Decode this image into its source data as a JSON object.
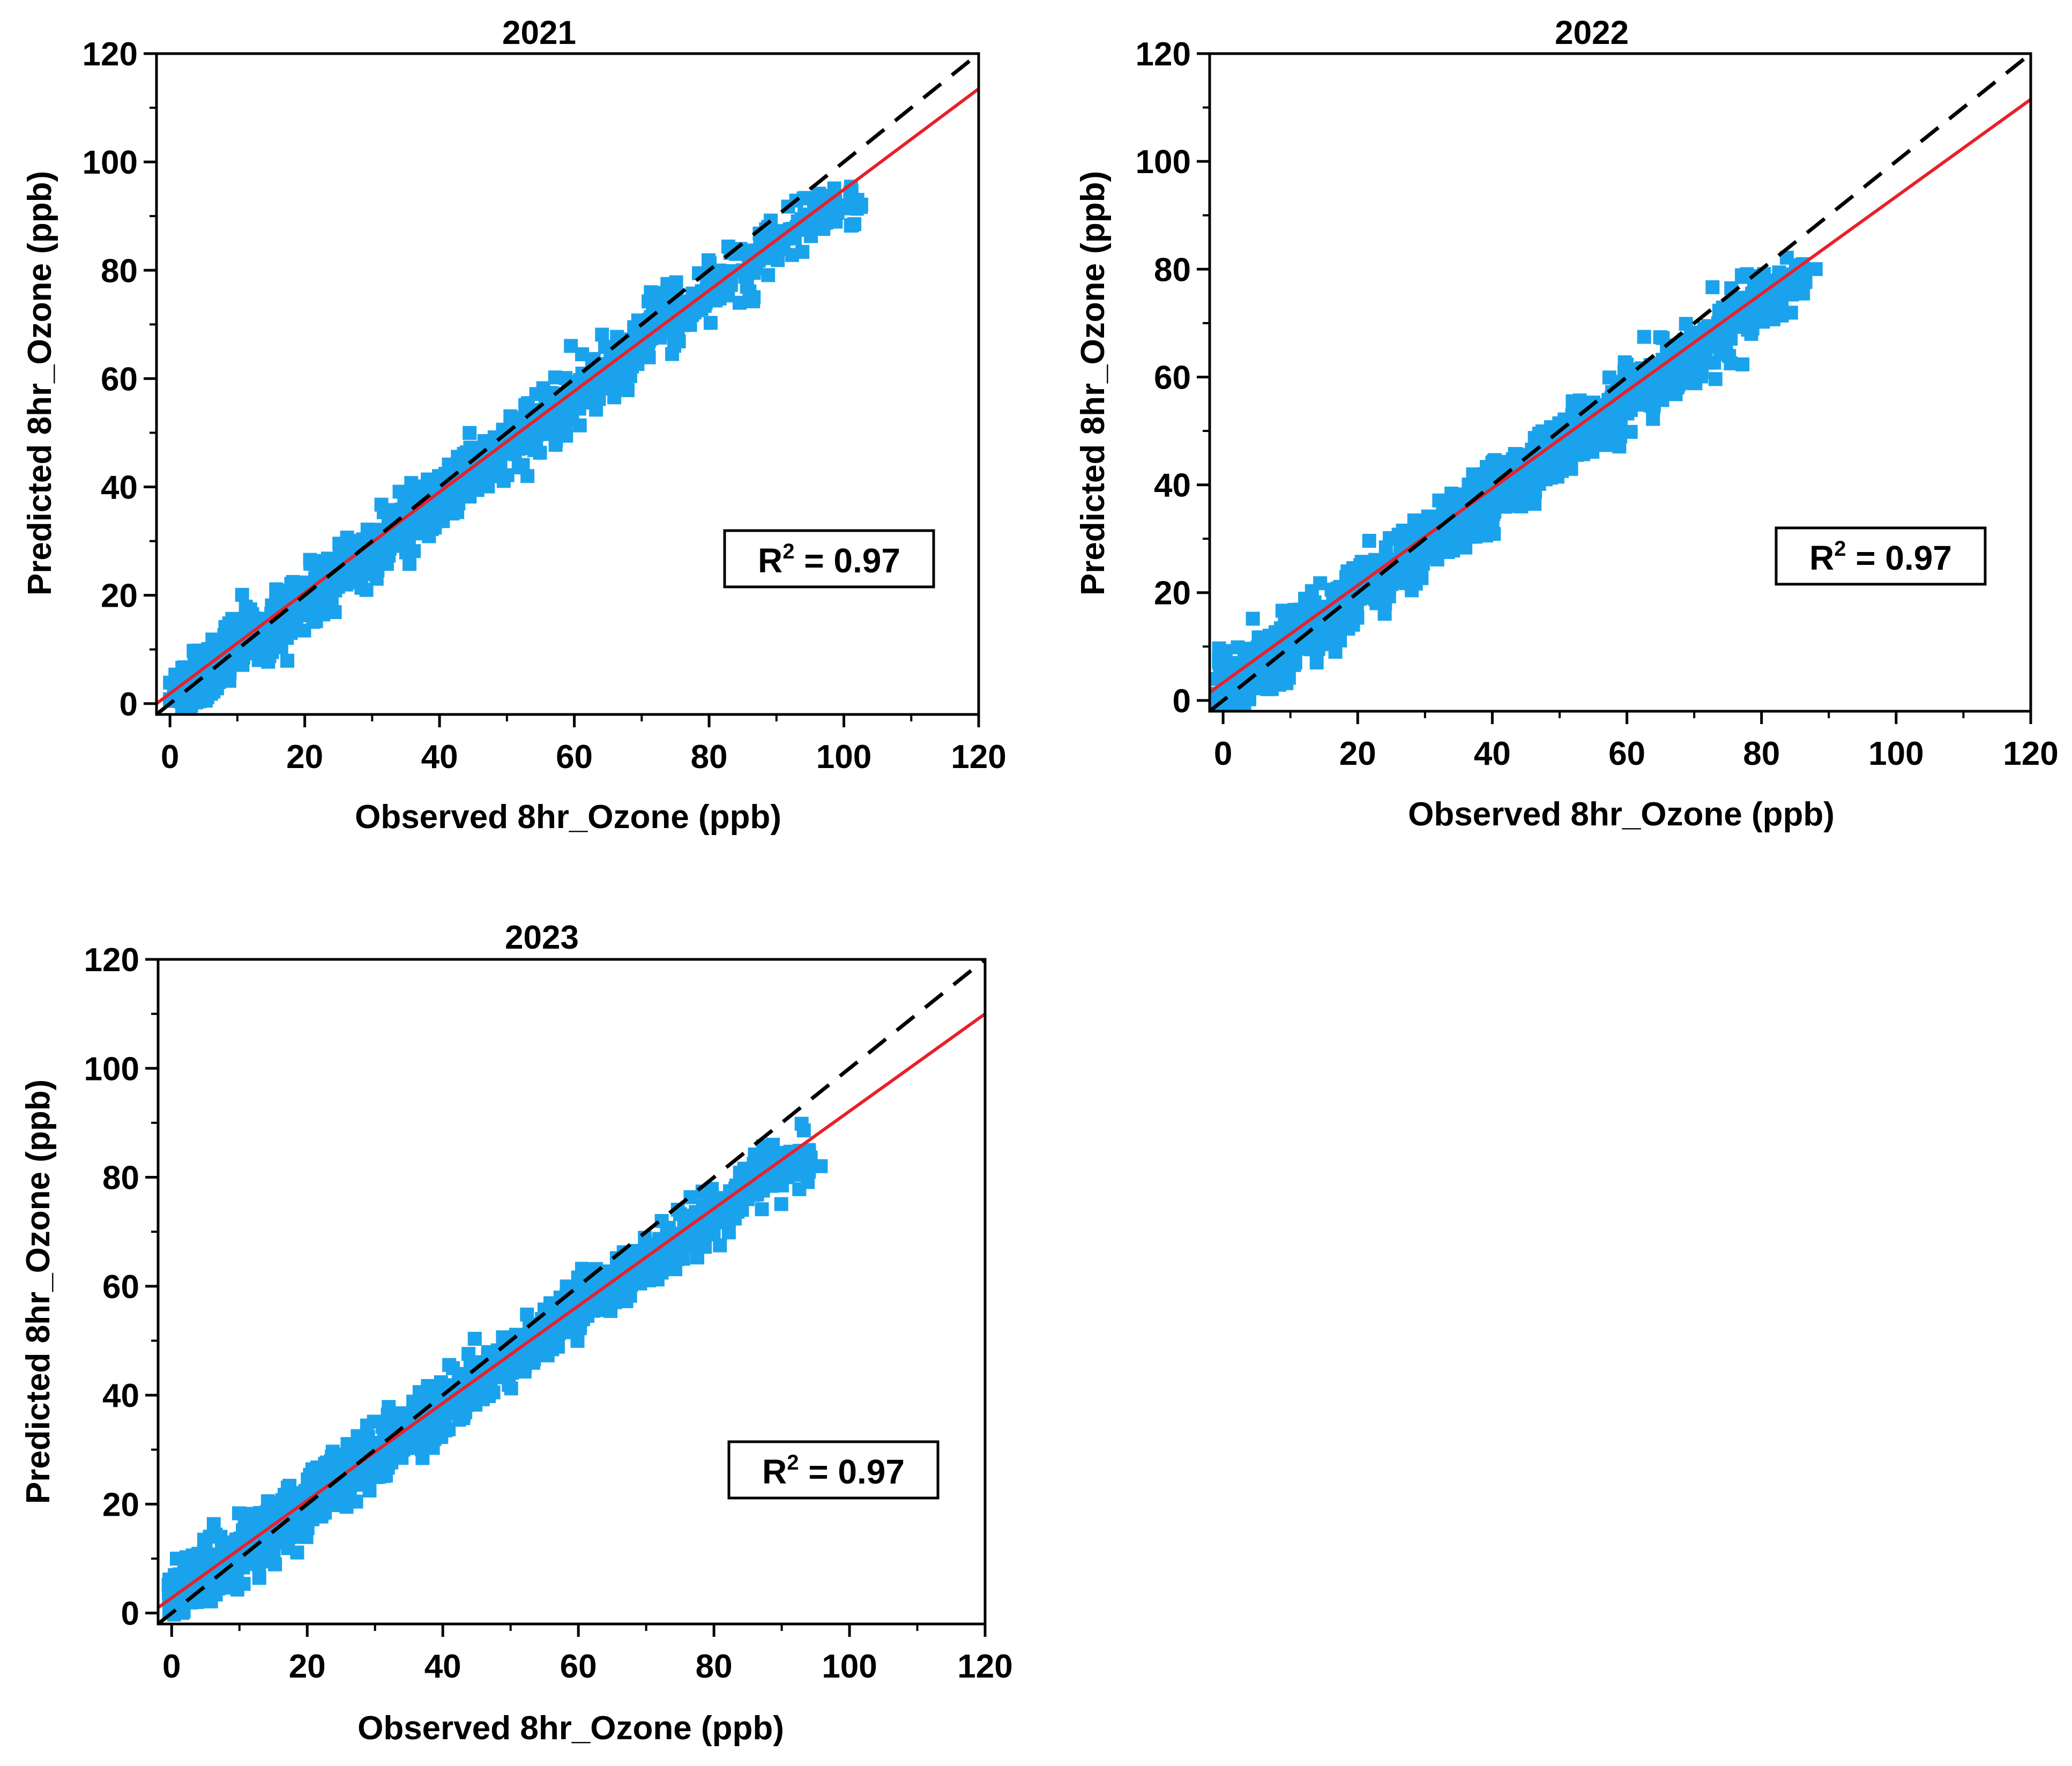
{
  "figure": {
    "panels": [
      {
        "title": "2021",
        "xlabel": "Observed 8hr_Ozone (ppb)",
        "ylabel": "Predicted 8hr_Ozone (ppb)",
        "annotation": {
          "base": "R",
          "sup": "2",
          "rest": " = 0.97"
        }
      },
      {
        "title": "2022",
        "xlabel": "Observed 8hr_Ozone (ppb)",
        "ylabel": "Predicted 8hr_Ozone (ppb)",
        "annotation": {
          "base": "R",
          "sup": "2",
          "rest": " = 0.97"
        }
      },
      {
        "title": "2023",
        "xlabel": "Observed 8hr_Ozone (ppb)",
        "ylabel": "Predicted 8hr_Ozone (ppb)",
        "annotation": {
          "base": "R",
          "sup": "2",
          "rest": " = 0.97"
        }
      }
    ]
  },
  "colors": {
    "points": "#1aa3ec",
    "fit_line": "#e8202a",
    "identity_line": "#000000",
    "axis": "#000000",
    "background": "#ffffff"
  },
  "chart_data": [
    {
      "type": "scatter",
      "title": "2021",
      "xlabel": "Observed 8hr_Ozone (ppb)",
      "ylabel": "Predicted 8hr_Ozone (ppb)",
      "xlim": [
        -2,
        120
      ],
      "ylim": [
        -2,
        120
      ],
      "xticks": [
        0,
        20,
        40,
        60,
        80,
        100,
        120
      ],
      "yticks": [
        0,
        20,
        40,
        60,
        80,
        100,
        120
      ],
      "annotation": "R2 = 0.97",
      "series": [
        {
          "name": "observations",
          "kind": "scatter",
          "marker": "square",
          "x": [
            1,
            3,
            5,
            7,
            10,
            12,
            14,
            16,
            18,
            20,
            22,
            24,
            26,
            28,
            30,
            32,
            34,
            36,
            38,
            40,
            42,
            44,
            46,
            48,
            50,
            52,
            54,
            56,
            58,
            60,
            62,
            64,
            66,
            68,
            70,
            72,
            74,
            76,
            78,
            80,
            82,
            85,
            88,
            90,
            93,
            96,
            100,
            102
          ],
          "y": [
            2,
            3,
            6,
            7,
            10,
            12,
            13,
            16,
            17,
            19,
            21,
            23,
            25,
            27,
            29,
            31,
            33,
            35,
            36,
            38,
            40,
            42,
            44,
            46,
            48,
            49,
            51,
            53,
            55,
            57,
            59,
            61,
            63,
            65,
            67,
            69,
            71,
            72,
            74,
            76,
            78,
            80,
            83,
            86,
            88,
            89,
            92,
            93
          ],
          "spread": 4
        },
        {
          "name": "regression fit",
          "kind": "line",
          "style": "solid",
          "x": [
            -2,
            120
          ],
          "y": [
            0.0,
            113.5
          ]
        },
        {
          "name": "1:1 line",
          "kind": "line",
          "style": "dashed",
          "x": [
            -2,
            120
          ],
          "y": [
            -2,
            120
          ]
        }
      ]
    },
    {
      "type": "scatter",
      "title": "2022",
      "xlabel": "Observed 8hr_Ozone (ppb)",
      "ylabel": "Predicted 8hr_Ozone (ppb)",
      "xlim": [
        -2,
        120
      ],
      "ylim": [
        -2,
        120
      ],
      "xticks": [
        0,
        20,
        40,
        60,
        80,
        100,
        120
      ],
      "yticks": [
        0,
        20,
        40,
        60,
        80,
        100,
        120
      ],
      "annotation": "R2 = 0.97",
      "series": [
        {
          "name": "observations",
          "kind": "scatter",
          "marker": "square",
          "x": [
            0,
            2,
            4,
            6,
            8,
            10,
            12,
            14,
            16,
            18,
            20,
            22,
            24,
            26,
            28,
            30,
            32,
            34,
            36,
            38,
            40,
            42,
            44,
            46,
            48,
            50,
            52,
            54,
            56,
            58,
            60,
            62,
            64,
            66,
            68,
            70,
            72,
            74,
            76,
            78,
            80,
            82,
            84,
            86
          ],
          "y": [
            2,
            4,
            6,
            7,
            9,
            11,
            13,
            14,
            16,
            18,
            20,
            22,
            23,
            25,
            27,
            29,
            31,
            32,
            34,
            36,
            38,
            40,
            41,
            43,
            45,
            47,
            49,
            50,
            52,
            54,
            56,
            58,
            59,
            61,
            63,
            65,
            67,
            68,
            70,
            72,
            74,
            76,
            77,
            80
          ],
          "spread": 4.5
        },
        {
          "name": "regression fit",
          "kind": "line",
          "style": "solid",
          "x": [
            -2,
            120
          ],
          "y": [
            1.5,
            111.5
          ]
        },
        {
          "name": "1:1 line",
          "kind": "line",
          "style": "dashed",
          "x": [
            -2,
            120
          ],
          "y": [
            -2,
            120
          ]
        }
      ]
    },
    {
      "type": "scatter",
      "title": "2023",
      "xlabel": "Observed 8hr_Ozone (ppb)",
      "ylabel": "Predicted 8hr_Ozone (ppb)",
      "xlim": [
        -2,
        120
      ],
      "ylim": [
        -2,
        120
      ],
      "xticks": [
        0,
        20,
        40,
        60,
        80,
        100,
        120
      ],
      "yticks": [
        0,
        20,
        40,
        60,
        80,
        100,
        120
      ],
      "annotation": "R2 = 0.97",
      "series": [
        {
          "name": "observations",
          "kind": "scatter",
          "marker": "square",
          "x": [
            0,
            2,
            4,
            6,
            8,
            10,
            12,
            14,
            16,
            18,
            20,
            22,
            24,
            26,
            28,
            30,
            32,
            34,
            36,
            38,
            40,
            42,
            44,
            46,
            48,
            50,
            52,
            54,
            56,
            58,
            60,
            62,
            64,
            66,
            68,
            70,
            72,
            74,
            76,
            78,
            80,
            82,
            84,
            86,
            88,
            90,
            92,
            94
          ],
          "y": [
            3,
            4,
            6,
            8,
            10,
            11,
            13,
            15,
            17,
            18,
            20,
            22,
            24,
            25,
            27,
            29,
            31,
            32,
            34,
            36,
            38,
            40,
            41,
            43,
            45,
            47,
            48,
            50,
            52,
            54,
            56,
            57,
            59,
            61,
            63,
            64,
            66,
            68,
            70,
            72,
            73,
            75,
            77,
            79,
            80,
            82,
            83,
            85
          ],
          "spread": 4
        },
        {
          "name": "regression fit",
          "kind": "line",
          "style": "solid",
          "x": [
            -2,
            120
          ],
          "y": [
            1.0,
            110.0
          ]
        },
        {
          "name": "1:1 line",
          "kind": "line",
          "style": "dashed",
          "x": [
            -2,
            120
          ],
          "y": [
            -2,
            120
          ]
        }
      ]
    }
  ]
}
